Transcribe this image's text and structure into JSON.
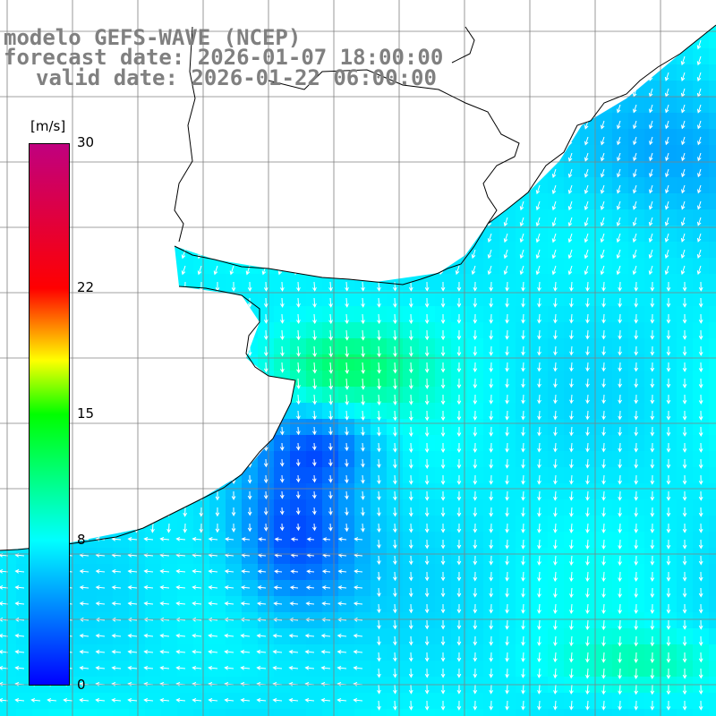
{
  "title": {
    "line1": "modelo GEFS-WAVE (NCEP)",
    "line2": "forecast date: 2026-01-07 18:00:00",
    "line3": "valid date: 2026-01-22 06:00:00"
  },
  "colorbar": {
    "unit": "[m/s]",
    "ticks": [
      "30",
      "22",
      "15",
      "8",
      "0"
    ],
    "tick_values": [
      30,
      22,
      15,
      8,
      0
    ],
    "min": 0,
    "max": 30,
    "stops": [
      {
        "v": 0,
        "color": "#0000ff"
      },
      {
        "v": 8,
        "color": "#00ffff"
      },
      {
        "v": 15,
        "color": "#00ff00"
      },
      {
        "v": 18,
        "color": "#ffff00"
      },
      {
        "v": 22,
        "color": "#ff0000"
      },
      {
        "v": 30,
        "color": "#c0007f"
      }
    ]
  },
  "colors": {
    "land": "#ffffff",
    "coast": "#000000",
    "grid": "#808080",
    "vector": "#ffffff",
    "title_text": "#808080"
  },
  "map": {
    "field": "wind speed with direction vectors",
    "region": "South Atlantic coast (southern Brazil / Uruguay / Rio de la Plata)"
  }
}
